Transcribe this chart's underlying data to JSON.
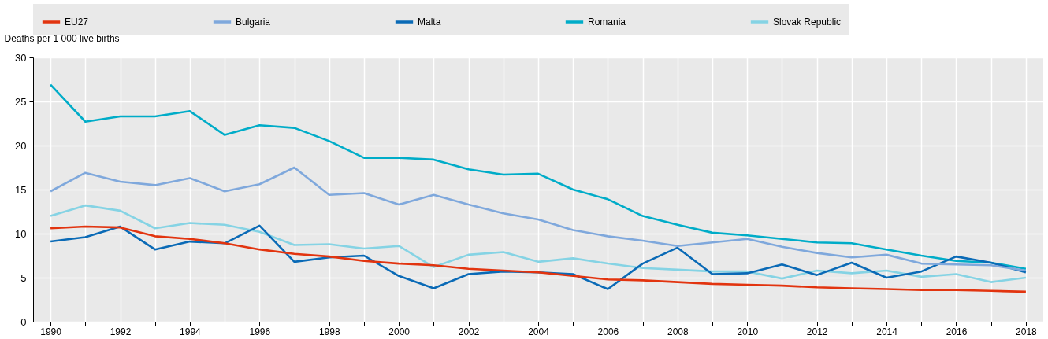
{
  "chart_data": {
    "type": "line",
    "ylabel": "Deaths per 1 000 live births",
    "legend": "top",
    "grid": true,
    "line_style": "solid",
    "marker": "none",
    "x": [
      1990,
      1991,
      1992,
      1993,
      1994,
      1995,
      1996,
      1997,
      1998,
      1999,
      2000,
      2001,
      2002,
      2003,
      2004,
      2005,
      2006,
      2007,
      2008,
      2009,
      2010,
      2011,
      2012,
      2013,
      2014,
      2015,
      2016,
      2017,
      2018
    ],
    "xlim": [
      1989.5,
      2018.5
    ],
    "xticks": [
      1990,
      {
        "value": 1991,
        "label": null
      },
      1992,
      {
        "value": 1993,
        "label": null
      },
      1994,
      {
        "value": 1995,
        "label": null
      },
      1996,
      {
        "value": 1997,
        "label": null
      },
      1998,
      {
        "value": 1999,
        "label": null
      },
      2000,
      {
        "value": 2001,
        "label": null
      },
      2002,
      {
        "value": 2003,
        "label": null
      },
      2004,
      {
        "value": 2005,
        "label": null
      },
      2006,
      {
        "value": 2007,
        "label": null
      },
      2008,
      {
        "value": 2009,
        "label": null
      },
      2010,
      {
        "value": 2011,
        "label": null
      },
      2012,
      {
        "value": 2013,
        "label": null
      },
      2014,
      {
        "value": 2015,
        "label": null
      },
      2016,
      {
        "value": 2017,
        "label": null
      },
      2018
    ],
    "ylim": [
      0,
      30
    ],
    "yticks": [
      0,
      5,
      10,
      15,
      20,
      25,
      30
    ],
    "series": [
      {
        "name": "EU27",
        "color": "#e2340f",
        "values": [
          10.6,
          10.8,
          10.7,
          9.7,
          9.4,
          8.9,
          8.2,
          7.7,
          7.4,
          6.9,
          6.6,
          6.4,
          6.0,
          5.8,
          5.6,
          5.2,
          4.8,
          4.7,
          4.5,
          4.3,
          4.2,
          4.1,
          3.9,
          3.8,
          3.7,
          3.6,
          3.6,
          3.5,
          3.4
        ]
      },
      {
        "name": "Bulgaria",
        "color": "#7fa8dc",
        "values": [
          14.8,
          16.9,
          15.9,
          15.5,
          16.3,
          14.8,
          15.6,
          17.5,
          14.4,
          14.6,
          13.3,
          14.4,
          13.3,
          12.3,
          11.6,
          10.4,
          9.7,
          9.2,
          8.6,
          9.0,
          9.4,
          8.5,
          7.8,
          7.3,
          7.6,
          6.6,
          6.5,
          6.4,
          5.8
        ]
      },
      {
        "name": "Malta",
        "color": "#0a6ab6",
        "values": [
          9.1,
          9.6,
          10.8,
          8.2,
          9.1,
          8.9,
          10.9,
          6.8,
          7.3,
          7.5,
          5.2,
          3.8,
          5.4,
          5.7,
          5.6,
          5.4,
          3.7,
          6.6,
          8.4,
          5.4,
          5.5,
          6.5,
          5.3,
          6.7,
          5.0,
          5.7,
          7.4,
          6.7,
          5.6
        ]
      },
      {
        "name": "Romania",
        "color": "#00acc8",
        "values": [
          26.9,
          22.7,
          23.3,
          23.3,
          23.9,
          21.2,
          22.3,
          22.0,
          20.5,
          18.6,
          18.6,
          18.4,
          17.3,
          16.7,
          16.8,
          15.0,
          13.9,
          12.0,
          11.0,
          10.1,
          9.8,
          9.4,
          9.0,
          8.9,
          8.2,
          7.5,
          6.9,
          6.7,
          6.0
        ]
      },
      {
        "name": "Slovak Republic",
        "color": "#85d3e4",
        "values": [
          12.0,
          13.2,
          12.6,
          10.6,
          11.2,
          11.0,
          10.2,
          8.7,
          8.8,
          8.3,
          8.6,
          6.2,
          7.6,
          7.9,
          6.8,
          7.2,
          6.6,
          6.1,
          5.9,
          5.7,
          5.7,
          4.9,
          5.8,
          5.5,
          5.8,
          5.1,
          5.4,
          4.5,
          5.0
        ]
      }
    ]
  }
}
